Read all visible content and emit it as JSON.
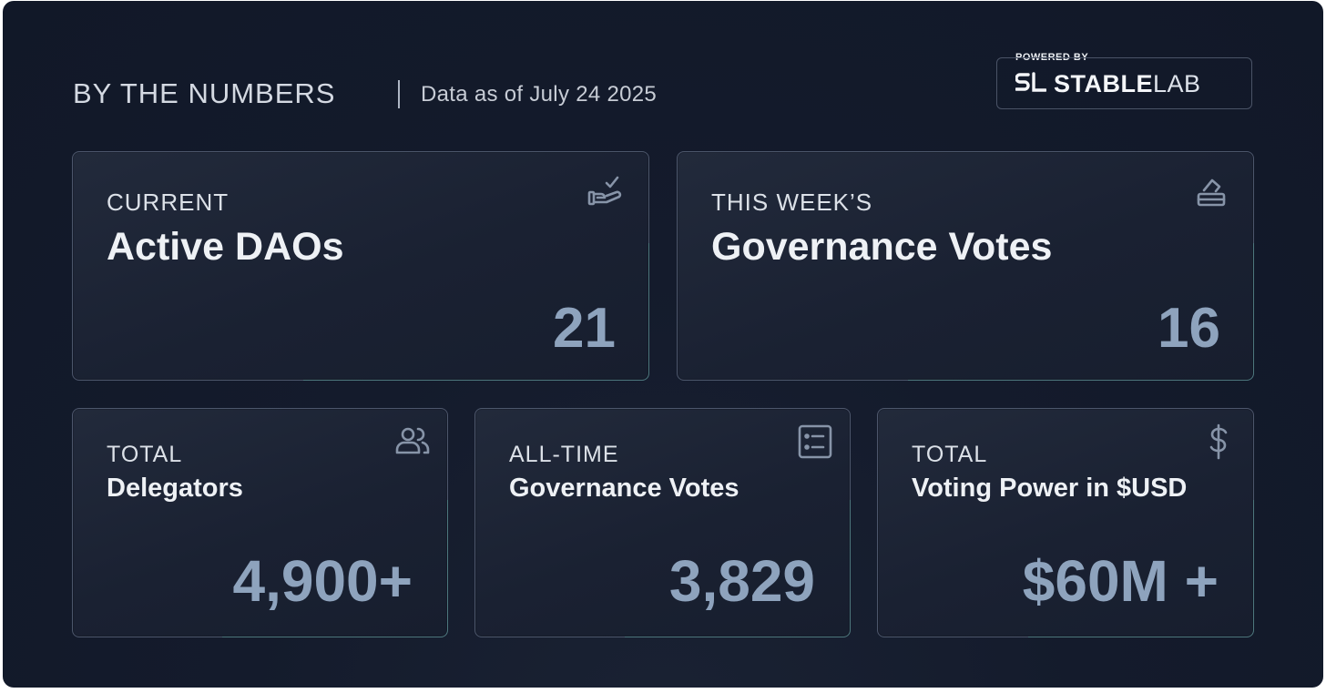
{
  "header": {
    "title": "BY THE NUMBERS",
    "date": "Data as of July 24 2025"
  },
  "brand": {
    "powered_by": "POWERED BY",
    "logo_bold": "STABLE",
    "logo_light": "LAB",
    "mark": "SL"
  },
  "cards": [
    {
      "kicker": "CURRENT",
      "headline": "Active DAOs",
      "value": "21",
      "icon": "hand-check-icon"
    },
    {
      "kicker": "THIS WEEK’S",
      "headline": "Governance Votes",
      "value": "16",
      "icon": "ballot-box-icon"
    },
    {
      "kicker": "TOTAL",
      "headline": "Delegators",
      "value": "4,900+",
      "icon": "users-icon"
    },
    {
      "kicker": "ALL-TIME",
      "headline": "Governance Votes",
      "value": "3,829",
      "icon": "list-icon"
    },
    {
      "kicker": "TOTAL",
      "headline": "Voting Power in $USD",
      "value": "$60M +",
      "icon": "dollar-icon"
    }
  ],
  "colors": {
    "background": "#141b2c",
    "value_text": "#8ea3bd",
    "icon": "#8794a8"
  }
}
